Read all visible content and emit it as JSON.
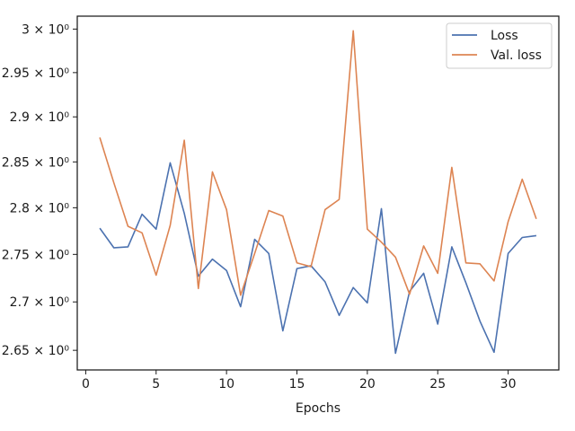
{
  "chart_data": {
    "type": "line",
    "xlabel": "Epochs",
    "ylabel": "",
    "xlim": [
      -0.6,
      33.6
    ],
    "ylim": [
      2.63,
      3.015
    ],
    "x_ticks": [
      0,
      5,
      10,
      15,
      20,
      25,
      30
    ],
    "x_tick_labels": [
      "0",
      "5",
      "10",
      "15",
      "20",
      "25",
      "30"
    ],
    "y_ticks": [
      2.65,
      2.7,
      2.75,
      2.8,
      2.85,
      2.9,
      2.95,
      3.0
    ],
    "y_tick_labels": [
      "2.65 × 10⁰",
      "2.7 × 10⁰",
      "2.75 × 10⁰",
      "2.8 × 10⁰",
      "2.85 × 10⁰",
      "2.9 × 10⁰",
      "2.95 × 10⁰",
      "3 × 10⁰"
    ],
    "y_scale": "log",
    "grid": false,
    "legend_position": "top-right",
    "x": [
      1,
      2,
      3,
      4,
      5,
      6,
      7,
      8,
      9,
      10,
      11,
      12,
      13,
      14,
      15,
      16,
      17,
      18,
      19,
      20,
      21,
      22,
      23,
      24,
      25,
      26,
      27,
      28,
      29,
      30,
      31,
      32
    ],
    "series": [
      {
        "name": "Loss",
        "color": "#4c72b0",
        "values": [
          2.778,
          2.757,
          2.758,
          2.793,
          2.777,
          2.849,
          2.794,
          2.727,
          2.745,
          2.733,
          2.695,
          2.766,
          2.751,
          2.67,
          2.735,
          2.738,
          2.721,
          2.686,
          2.715,
          2.699,
          2.799,
          2.647,
          2.711,
          2.73,
          2.677,
          2.758,
          2.72,
          2.68,
          2.648,
          2.751,
          2.768,
          2.77
        ]
      },
      {
        "name": "Val. loss",
        "color": "#dd8452",
        "values": [
          2.877,
          2.827,
          2.78,
          2.773,
          2.728,
          2.781,
          2.874,
          2.714,
          2.839,
          2.798,
          2.707,
          2.751,
          2.797,
          2.791,
          2.741,
          2.737,
          2.798,
          2.809,
          2.998,
          2.777,
          2.763,
          2.747,
          2.708,
          2.759,
          2.73,
          2.844,
          2.741,
          2.74,
          2.722,
          2.785,
          2.831,
          2.788
        ]
      }
    ]
  }
}
